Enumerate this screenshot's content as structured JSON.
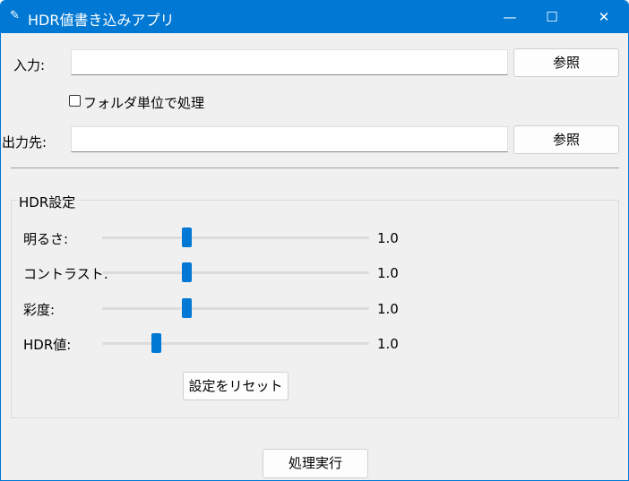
{
  "window": {
    "title": "HDR値書き込みアプリ",
    "icon": "feather-icon",
    "accent": "#0078d4",
    "minimize": "minimize-icon",
    "maximize": "maximize-icon",
    "close": "close-icon"
  },
  "input": {
    "label": "入力:",
    "value": "",
    "browse": "参照"
  },
  "folder_checkbox": {
    "label": "フォルダ単位で処理",
    "checked": false
  },
  "output": {
    "label": "出力先:",
    "value": "",
    "browse": "参照"
  },
  "hdr_settings": {
    "title": "HDR設定",
    "sliders": [
      {
        "label": "明るさ:",
        "value": "1.0",
        "position": 0.31
      },
      {
        "label": "コントラスト:",
        "value": "1.0",
        "position": 0.31
      },
      {
        "label": "彩度:",
        "value": "1.0",
        "position": 0.31
      },
      {
        "label": "HDR値:",
        "value": "1.0",
        "position": 0.19
      }
    ],
    "reset": "設定をリセット"
  },
  "run": "処理実行"
}
